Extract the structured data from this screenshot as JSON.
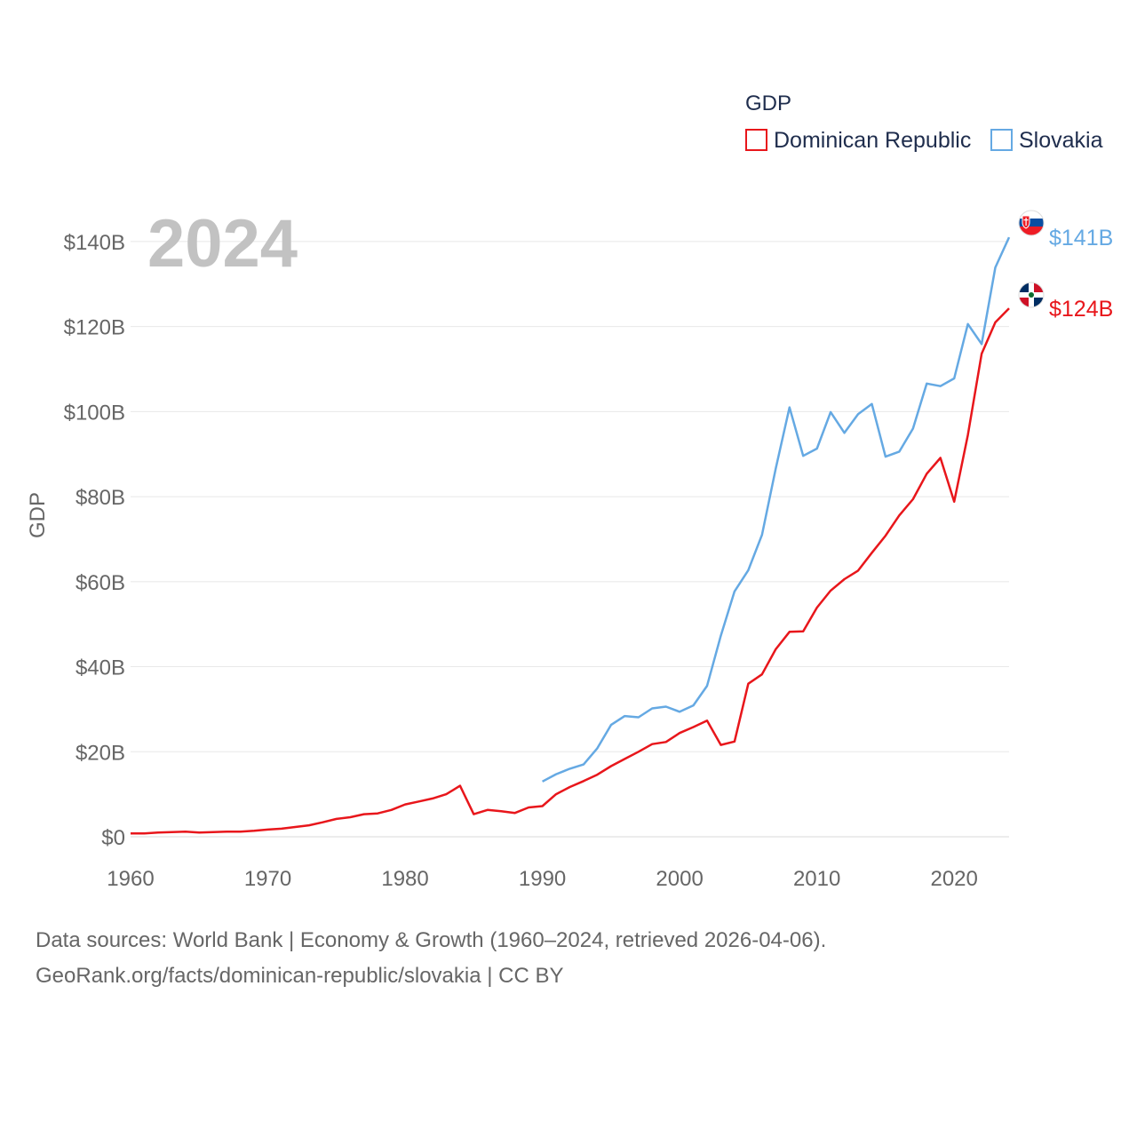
{
  "chart_data": {
    "type": "line",
    "title": "",
    "xlabel": "",
    "ylabel": "GDP",
    "year_display": "2024",
    "legend": {
      "title": "GDP",
      "position": "top-right"
    },
    "xlim": [
      1960,
      2024
    ],
    "ylim": [
      0,
      145
    ],
    "x_ticks": [
      {
        "value": 1960,
        "label": "1960"
      },
      {
        "value": 1970,
        "label": "1970"
      },
      {
        "value": 1980,
        "label": "1980"
      },
      {
        "value": 1990,
        "label": "1990"
      },
      {
        "value": 2000,
        "label": "2000"
      },
      {
        "value": 2010,
        "label": "2010"
      },
      {
        "value": 2020,
        "label": "2020"
      }
    ],
    "y_ticks": [
      {
        "value": 0,
        "label": "$0"
      },
      {
        "value": 20,
        "label": "$20B"
      },
      {
        "value": 40,
        "label": "$40B"
      },
      {
        "value": 60,
        "label": "$60B"
      },
      {
        "value": 80,
        "label": "$80B"
      },
      {
        "value": 100,
        "label": "$100B"
      },
      {
        "value": 120,
        "label": "$120B"
      },
      {
        "value": 140,
        "label": "$140B"
      }
    ],
    "grid": true,
    "units": "billions USD",
    "series": [
      {
        "name": "Dominican Republic",
        "color": "#e8161b",
        "end_label": "$124B",
        "flag_icon": "dominican-republic-flag-icon",
        "x": [
          1960,
          1961,
          1962,
          1963,
          1964,
          1965,
          1966,
          1967,
          1968,
          1969,
          1970,
          1971,
          1972,
          1973,
          1974,
          1975,
          1976,
          1977,
          1978,
          1979,
          1980,
          1981,
          1982,
          1983,
          1984,
          1985,
          1986,
          1987,
          1988,
          1989,
          1990,
          1991,
          1992,
          1993,
          1994,
          1995,
          1996,
          1997,
          1998,
          1999,
          2000,
          2001,
          2002,
          2003,
          2004,
          2005,
          2006,
          2007,
          2008,
          2009,
          2010,
          2011,
          2012,
          2013,
          2014,
          2015,
          2016,
          2017,
          2018,
          2019,
          2020,
          2021,
          2022,
          2023,
          2024
        ],
        "values": [
          0.8,
          0.8,
          1.0,
          1.1,
          1.2,
          1.0,
          1.1,
          1.2,
          1.2,
          1.4,
          1.7,
          1.9,
          2.3,
          2.7,
          3.4,
          4.2,
          4.6,
          5.3,
          5.5,
          6.3,
          7.6,
          8.3,
          9.0,
          10.0,
          12.0,
          5.3,
          6.3,
          6.0,
          5.6,
          6.9,
          7.2,
          10.0,
          11.7,
          13.1,
          14.6,
          16.6,
          18.3,
          20.0,
          21.8,
          22.3,
          24.4,
          25.8,
          27.3,
          21.6,
          22.4,
          36.0,
          38.2,
          44.1,
          48.2,
          48.3,
          53.9,
          57.9,
          60.6,
          62.6,
          66.8,
          70.8,
          75.6,
          79.4,
          85.4,
          89.1,
          78.8,
          94.5,
          113.6,
          121.0,
          124.3
        ]
      },
      {
        "name": "Slovakia",
        "color": "#65a9e3",
        "end_label": "$141B",
        "flag_icon": "slovakia-flag-icon",
        "x": [
          1990,
          1991,
          1992,
          1993,
          1994,
          1995,
          1996,
          1997,
          1998,
          1999,
          2000,
          2001,
          2002,
          2003,
          2004,
          2005,
          2006,
          2007,
          2008,
          2009,
          2010,
          2011,
          2012,
          2013,
          2014,
          2015,
          2016,
          2017,
          2018,
          2019,
          2020,
          2021,
          2022,
          2023,
          2024
        ],
        "values": [
          13.0,
          14.7,
          16.0,
          17.0,
          20.8,
          26.3,
          28.4,
          28.1,
          30.2,
          30.6,
          29.4,
          30.9,
          35.5,
          47.3,
          57.7,
          62.7,
          71.0,
          86.6,
          101.0,
          89.6,
          91.3,
          99.9,
          95.0,
          99.4,
          101.8,
          89.4,
          90.6,
          96.0,
          106.6,
          106.0,
          107.8,
          120.6,
          115.9,
          133.9,
          141.0
        ]
      }
    ]
  },
  "footer": {
    "line1": "Data sources: World Bank | Economy & Growth (1960–2024, retrieved 2026-04-06).",
    "line2": "GeoRank.org/facts/dominican-republic/slovakia | CC BY"
  }
}
